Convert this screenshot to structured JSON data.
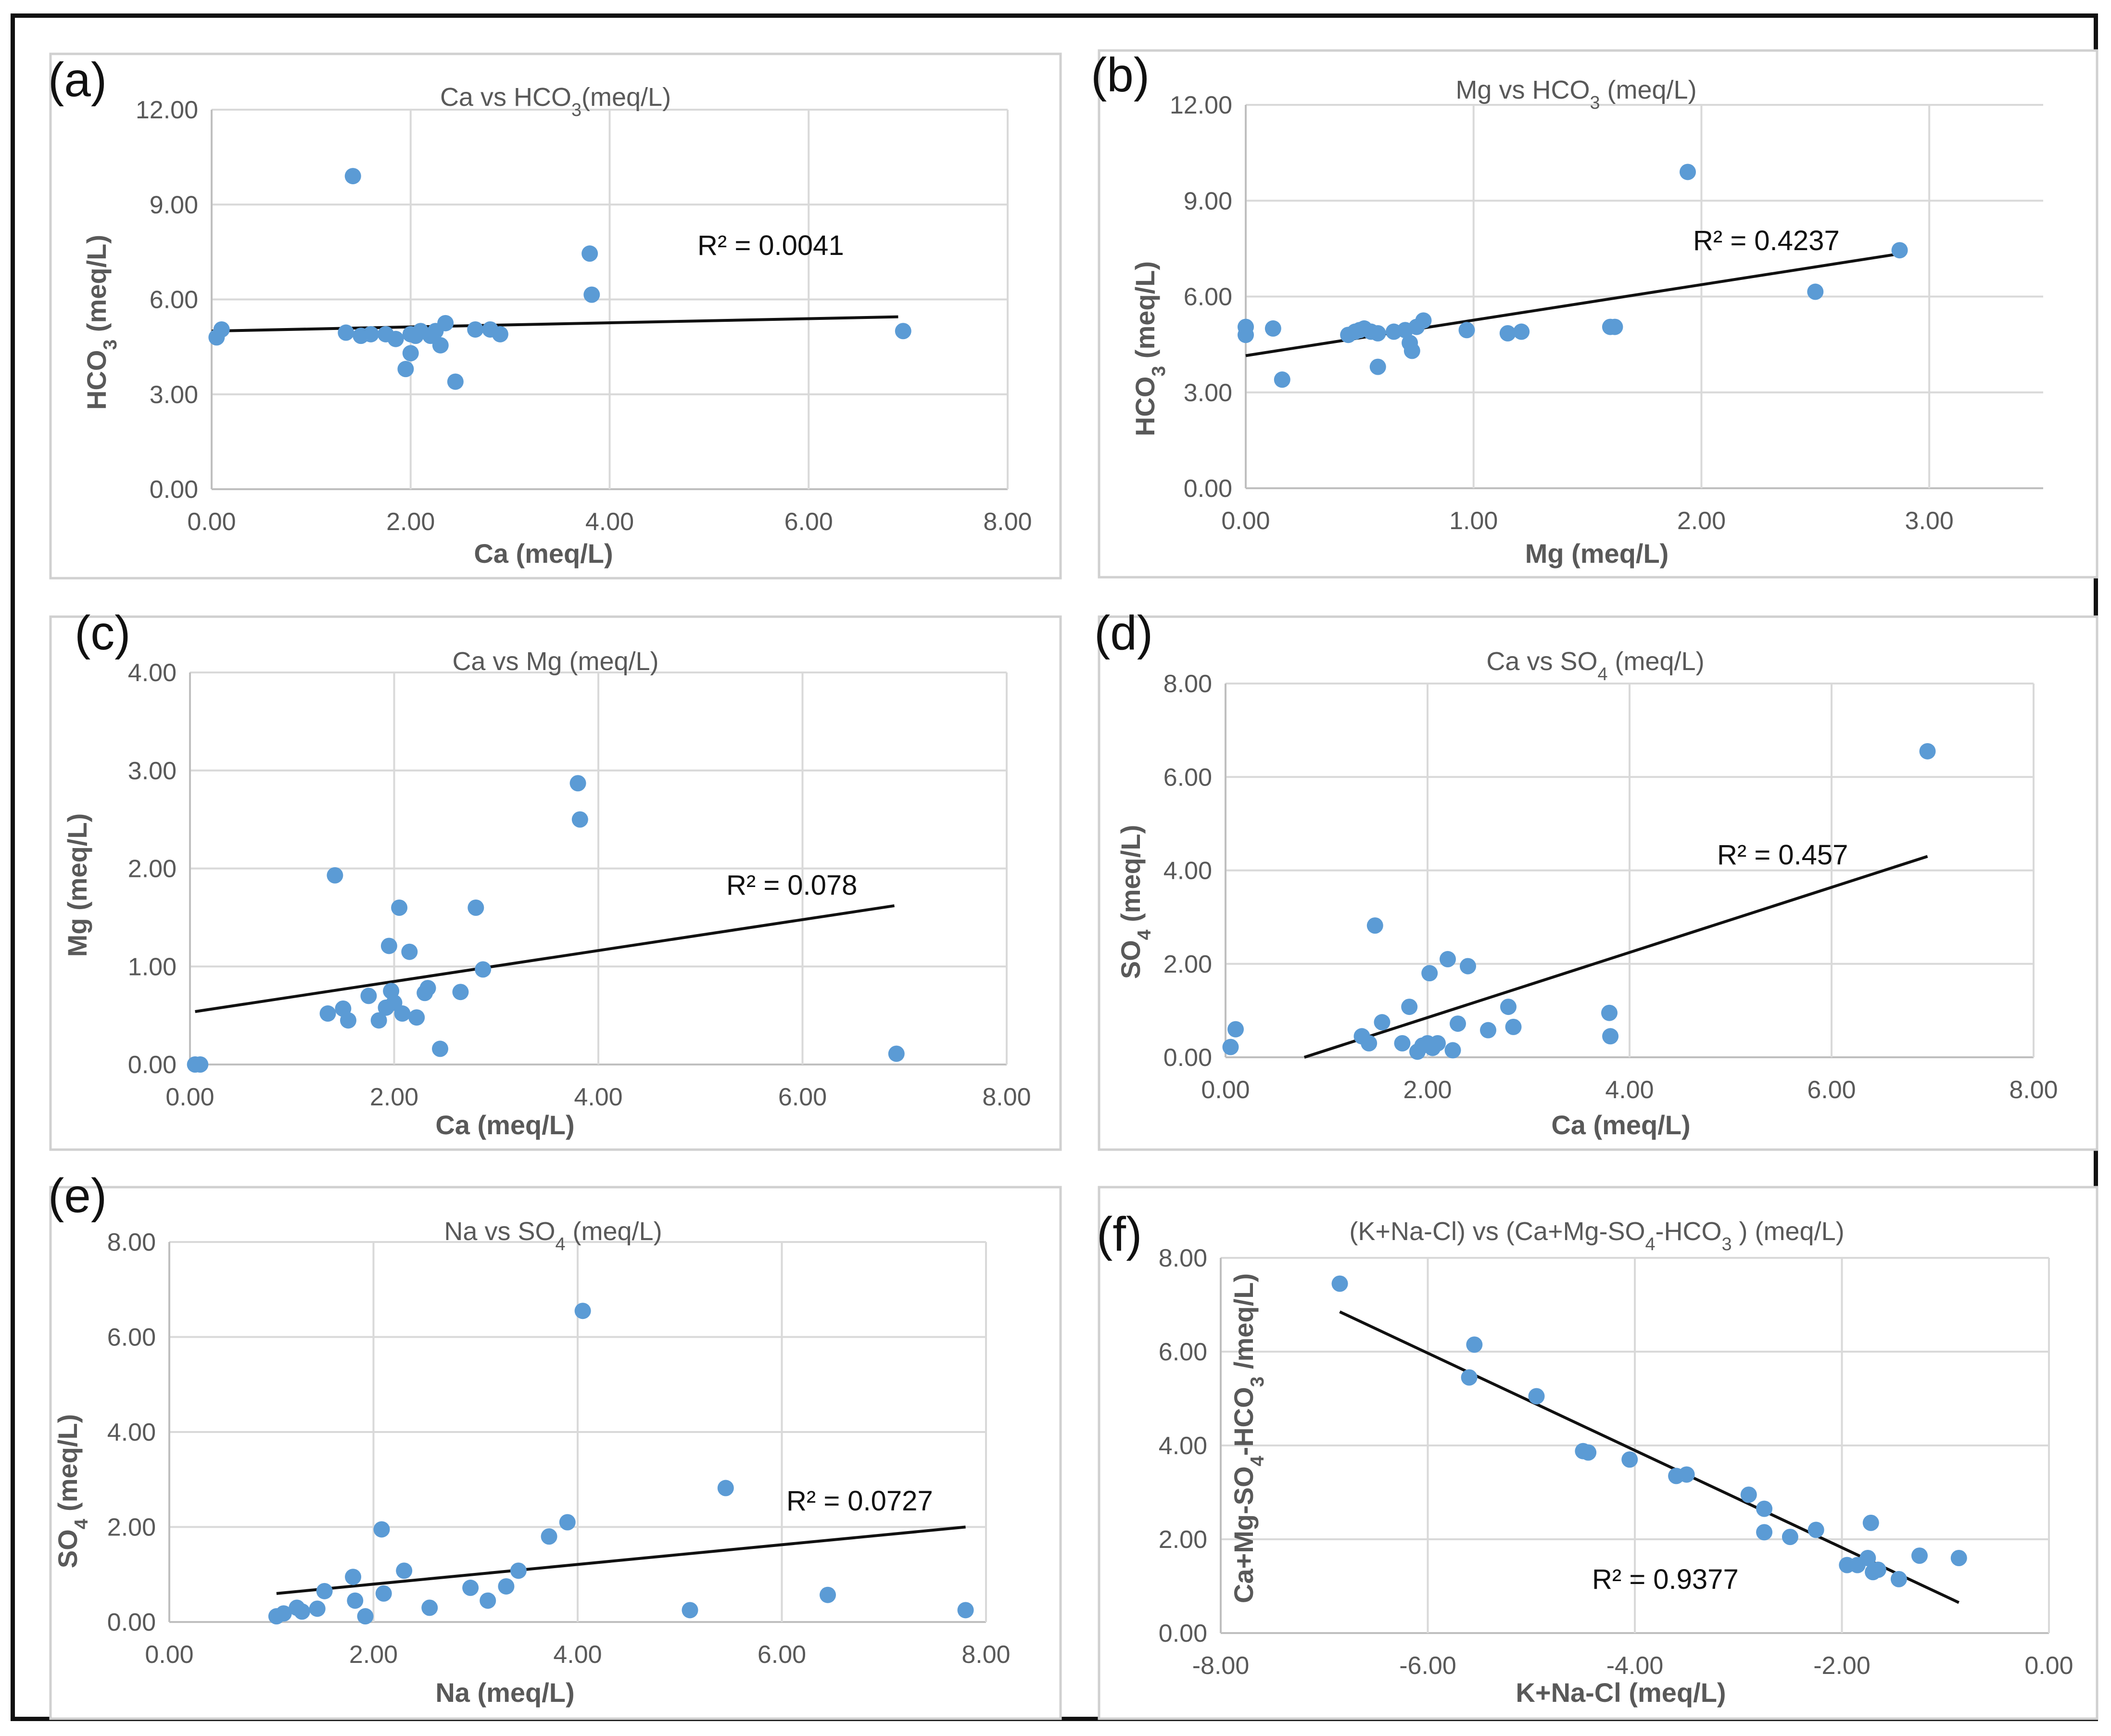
{
  "colors": {
    "point": "#5b9bd5",
    "trend": "#111111"
  },
  "chart_data": [
    {
      "type": "scatter",
      "label": "(a)",
      "title_parts": [
        [
          "Ca vs HCO",
          "normal"
        ],
        [
          "3",
          "sub"
        ],
        [
          "(meq/L)",
          "normal"
        ]
      ],
      "xlabel": "Ca (meq/L)",
      "ylabel_parts": [
        [
          "HCO",
          "normal"
        ],
        [
          "3",
          "sub"
        ],
        [
          " (meq/L)",
          "normal"
        ]
      ],
      "xlim": [
        0,
        8
      ],
      "ylim": [
        0,
        12
      ],
      "xticks": [
        0,
        2,
        4,
        6,
        8
      ],
      "yticks": [
        0,
        3,
        6,
        9,
        12
      ],
      "tick_labels_x": [
        "0.00",
        "2.00",
        "4.00",
        "6.00",
        "8.00"
      ],
      "tick_labels_y": [
        "0.00",
        "3.00",
        "6.00",
        "9.00",
        "12.00"
      ],
      "r2": "R² = 0.0041",
      "trend": [
        [
          0,
          5.0
        ],
        [
          6.9,
          5.45
        ]
      ],
      "points": [
        [
          0.05,
          4.8
        ],
        [
          0.1,
          5.05
        ],
        [
          1.35,
          4.95
        ],
        [
          1.42,
          9.9
        ],
        [
          1.5,
          4.85
        ],
        [
          1.6,
          4.9
        ],
        [
          1.75,
          4.9
        ],
        [
          1.85,
          4.75
        ],
        [
          1.95,
          3.8
        ],
        [
          2.0,
          4.3
        ],
        [
          2.0,
          4.9
        ],
        [
          2.05,
          4.85
        ],
        [
          2.1,
          5.0
        ],
        [
          2.2,
          4.85
        ],
        [
          2.25,
          5.0
        ],
        [
          2.3,
          4.55
        ],
        [
          2.35,
          5.25
        ],
        [
          2.45,
          3.4
        ],
        [
          2.65,
          5.05
        ],
        [
          2.8,
          5.05
        ],
        [
          2.9,
          4.9
        ],
        [
          3.8,
          7.45
        ],
        [
          3.82,
          6.15
        ],
        [
          6.95,
          5.0
        ]
      ]
    },
    {
      "type": "scatter",
      "label": "(b)",
      "title_parts": [
        [
          "Mg vs HCO",
          "normal"
        ],
        [
          "3",
          "sub"
        ],
        [
          " (meq/L)",
          "normal"
        ]
      ],
      "xlabel": "Mg (meq/L)",
      "ylabel_parts": [
        [
          "HCO",
          "normal"
        ],
        [
          "3",
          "sub"
        ],
        [
          " (meq/L)",
          "normal"
        ]
      ],
      "xlim": [
        0,
        3.5
      ],
      "ylim": [
        0,
        12
      ],
      "xticks": [
        0,
        1,
        2,
        3
      ],
      "yticks": [
        0,
        3,
        6,
        9,
        12
      ],
      "tick_labels_x": [
        "0.00",
        "1.00",
        "2.00",
        "3.00"
      ],
      "tick_labels_y": [
        "0.00",
        "3.00",
        "6.00",
        "9.00",
        "12.00"
      ],
      "r2": "R² = 0.4237",
      "trend": [
        [
          0,
          4.15
        ],
        [
          2.88,
          7.35
        ]
      ],
      "points": [
        [
          0.0,
          4.8
        ],
        [
          0.0,
          5.05
        ],
        [
          0.12,
          5.0
        ],
        [
          0.16,
          3.4
        ],
        [
          0.45,
          4.8
        ],
        [
          0.48,
          4.9
        ],
        [
          0.5,
          4.95
        ],
        [
          0.52,
          5.0
        ],
        [
          0.55,
          4.9
        ],
        [
          0.58,
          4.85
        ],
        [
          0.58,
          3.8
        ],
        [
          0.65,
          4.9
        ],
        [
          0.7,
          4.95
        ],
        [
          0.72,
          4.55
        ],
        [
          0.73,
          4.3
        ],
        [
          0.75,
          5.05
        ],
        [
          0.78,
          5.25
        ],
        [
          0.97,
          4.95
        ],
        [
          1.15,
          4.85
        ],
        [
          1.21,
          4.9
        ],
        [
          1.6,
          5.05
        ],
        [
          1.62,
          5.05
        ],
        [
          1.94,
          9.9
        ],
        [
          2.5,
          6.15
        ],
        [
          2.87,
          7.45
        ]
      ]
    },
    {
      "type": "scatter",
      "label": "(c)",
      "title_parts": [
        [
          "Ca vs Mg (meq/L)",
          "normal"
        ]
      ],
      "xlabel": "Ca (meq/L)",
      "ylabel_parts": [
        [
          "Mg (meq/L)",
          "normal"
        ]
      ],
      "xlim": [
        0,
        8
      ],
      "ylim": [
        0,
        4
      ],
      "xticks": [
        0,
        2,
        4,
        6,
        8
      ],
      "yticks": [
        0,
        1,
        2,
        3,
        4
      ],
      "tick_labels_x": [
        "0.00",
        "2.00",
        "4.00",
        "6.00",
        "8.00"
      ],
      "tick_labels_y": [
        "0.00",
        "1.00",
        "2.00",
        "3.00",
        "4.00"
      ],
      "r2": "R² = 0.078",
      "trend": [
        [
          0.05,
          0.54
        ],
        [
          6.9,
          1.62
        ]
      ],
      "points": [
        [
          0.05,
          0.0
        ],
        [
          0.1,
          0.0
        ],
        [
          1.35,
          0.52
        ],
        [
          1.42,
          1.93
        ],
        [
          1.5,
          0.57
        ],
        [
          1.55,
          0.45
        ],
        [
          1.75,
          0.7
        ],
        [
          1.85,
          0.45
        ],
        [
          1.92,
          0.58
        ],
        [
          1.95,
          1.21
        ],
        [
          1.97,
          0.75
        ],
        [
          2.0,
          0.63
        ],
        [
          2.05,
          1.6
        ],
        [
          2.08,
          0.52
        ],
        [
          2.15,
          1.15
        ],
        [
          2.22,
          0.48
        ],
        [
          2.3,
          0.73
        ],
        [
          2.33,
          0.78
        ],
        [
          2.45,
          0.16
        ],
        [
          2.65,
          0.74
        ],
        [
          2.8,
          1.6
        ],
        [
          2.87,
          0.97
        ],
        [
          3.8,
          2.87
        ],
        [
          3.82,
          2.5
        ],
        [
          6.92,
          0.11
        ]
      ]
    },
    {
      "type": "scatter",
      "label": "(d)",
      "title_parts": [
        [
          "Ca vs SO",
          "normal"
        ],
        [
          "4",
          "sub"
        ],
        [
          " (meq/L)",
          "normal"
        ]
      ],
      "xlabel": "Ca (meq/L)",
      "ylabel_parts": [
        [
          "SO",
          "normal"
        ],
        [
          "4",
          "sub"
        ],
        [
          " (meq/L)",
          "normal"
        ]
      ],
      "xlim": [
        0,
        8
      ],
      "ylim": [
        0,
        8
      ],
      "xticks": [
        0,
        2,
        4,
        6,
        8
      ],
      "yticks": [
        0,
        2,
        4,
        6,
        8
      ],
      "tick_labels_x": [
        "0.00",
        "2.00",
        "4.00",
        "6.00",
        "8.00"
      ],
      "tick_labels_y": [
        "0.00",
        "2.00",
        "4.00",
        "6.00",
        "8.00"
      ],
      "r2": "R² = 0.457",
      "trend": [
        [
          0.78,
          0.0
        ],
        [
          6.95,
          4.3
        ]
      ],
      "points": [
        [
          0.05,
          0.22
        ],
        [
          0.1,
          0.6
        ],
        [
          1.35,
          0.45
        ],
        [
          1.42,
          0.3
        ],
        [
          1.48,
          2.82
        ],
        [
          1.55,
          0.75
        ],
        [
          1.75,
          0.3
        ],
        [
          1.82,
          1.08
        ],
        [
          1.9,
          0.12
        ],
        [
          1.95,
          0.25
        ],
        [
          2.0,
          0.3
        ],
        [
          2.02,
          1.8
        ],
        [
          2.05,
          0.2
        ],
        [
          2.1,
          0.3
        ],
        [
          2.2,
          2.1
        ],
        [
          2.25,
          0.15
        ],
        [
          2.3,
          0.72
        ],
        [
          2.4,
          1.95
        ],
        [
          2.6,
          0.58
        ],
        [
          2.8,
          1.08
        ],
        [
          2.85,
          0.65
        ],
        [
          3.8,
          0.95
        ],
        [
          3.81,
          0.45
        ],
        [
          6.95,
          6.55
        ]
      ]
    },
    {
      "type": "scatter",
      "label": "(e)",
      "title_parts": [
        [
          "Na vs SO",
          "normal"
        ],
        [
          "4",
          "sub"
        ],
        [
          " (meq/L)",
          "normal"
        ]
      ],
      "xlabel": "Na (meq/L)",
      "ylabel_parts": [
        [
          "SO",
          "normal"
        ],
        [
          "4",
          "sub"
        ],
        [
          " (meq/L)",
          "normal"
        ]
      ],
      "xlim": [
        0,
        8
      ],
      "ylim": [
        0,
        8
      ],
      "xticks": [
        0,
        2,
        4,
        6,
        8
      ],
      "yticks": [
        0,
        2,
        4,
        6,
        8
      ],
      "tick_labels_x": [
        "0.00",
        "2.00",
        "4.00",
        "6.00",
        "8.00"
      ],
      "tick_labels_y": [
        "0.00",
        "2.00",
        "4.00",
        "6.00",
        "8.00"
      ],
      "r2": "R² = 0.0727",
      "trend": [
        [
          1.05,
          0.6
        ],
        [
          7.8,
          2.0
        ]
      ],
      "points": [
        [
          1.05,
          0.12
        ],
        [
          1.12,
          0.18
        ],
        [
          1.25,
          0.3
        ],
        [
          1.3,
          0.22
        ],
        [
          1.45,
          0.28
        ],
        [
          1.52,
          0.65
        ],
        [
          1.8,
          0.95
        ],
        [
          1.82,
          0.45
        ],
        [
          1.92,
          0.12
        ],
        [
          2.08,
          1.95
        ],
        [
          2.1,
          0.6
        ],
        [
          2.3,
          1.08
        ],
        [
          2.55,
          0.3
        ],
        [
          2.95,
          0.72
        ],
        [
          3.12,
          0.45
        ],
        [
          3.3,
          0.75
        ],
        [
          3.42,
          1.08
        ],
        [
          3.72,
          1.8
        ],
        [
          3.9,
          2.1
        ],
        [
          4.05,
          6.55
        ],
        [
          5.1,
          0.25
        ],
        [
          5.45,
          2.82
        ],
        [
          6.45,
          0.57
        ],
        [
          7.8,
          0.25
        ]
      ]
    },
    {
      "type": "scatter",
      "label": "(f)",
      "title_parts": [
        [
          "(K+Na-Cl) vs (Ca+Mg-SO",
          "normal"
        ],
        [
          "4",
          "sub"
        ],
        [
          "-HCO",
          "normal"
        ],
        [
          "3",
          "sub"
        ],
        [
          "  )  (meq/L)",
          "normal"
        ]
      ],
      "xlabel": "K+Na-Cl (meq/L)",
      "ylabel_parts": [
        [
          "Ca+Mg-SO",
          "normal"
        ],
        [
          "4",
          "sub"
        ],
        [
          "-HCO",
          "normal"
        ],
        [
          "3",
          "sub"
        ],
        [
          " /meq/L)",
          "normal"
        ]
      ],
      "xlim": [
        -8,
        0
      ],
      "ylim": [
        0,
        8
      ],
      "xticks": [
        -8,
        -6,
        -4,
        -2,
        0
      ],
      "yticks": [
        0,
        2,
        4,
        6,
        8
      ],
      "tick_labels_x": [
        "-8.00",
        "-6.00",
        "-4.00",
        "-2.00",
        "0.00"
      ],
      "tick_labels_y": [
        "0.00",
        "2.00",
        "4.00",
        "6.00",
        "8.00"
      ],
      "r2": "R² = 0.9377",
      "trend": [
        [
          -6.85,
          6.85
        ],
        [
          -0.87,
          0.65
        ]
      ],
      "points": [
        [
          -6.85,
          7.45
        ],
        [
          -5.6,
          5.45
        ],
        [
          -5.55,
          6.15
        ],
        [
          -4.95,
          5.05
        ],
        [
          -4.5,
          3.88
        ],
        [
          -4.45,
          3.85
        ],
        [
          -4.05,
          3.7
        ],
        [
          -3.6,
          3.35
        ],
        [
          -3.5,
          3.38
        ],
        [
          -2.9,
          2.95
        ],
        [
          -2.75,
          2.65
        ],
        [
          -2.75,
          2.15
        ],
        [
          -2.5,
          2.05
        ],
        [
          -2.25,
          2.2
        ],
        [
          -1.95,
          1.45
        ],
        [
          -1.85,
          1.45
        ],
        [
          -1.75,
          1.6
        ],
        [
          -1.72,
          2.35
        ],
        [
          -1.7,
          1.3
        ],
        [
          -1.65,
          1.35
        ],
        [
          -1.45,
          1.15
        ],
        [
          -1.25,
          1.65
        ],
        [
          -0.87,
          1.6
        ]
      ]
    }
  ]
}
